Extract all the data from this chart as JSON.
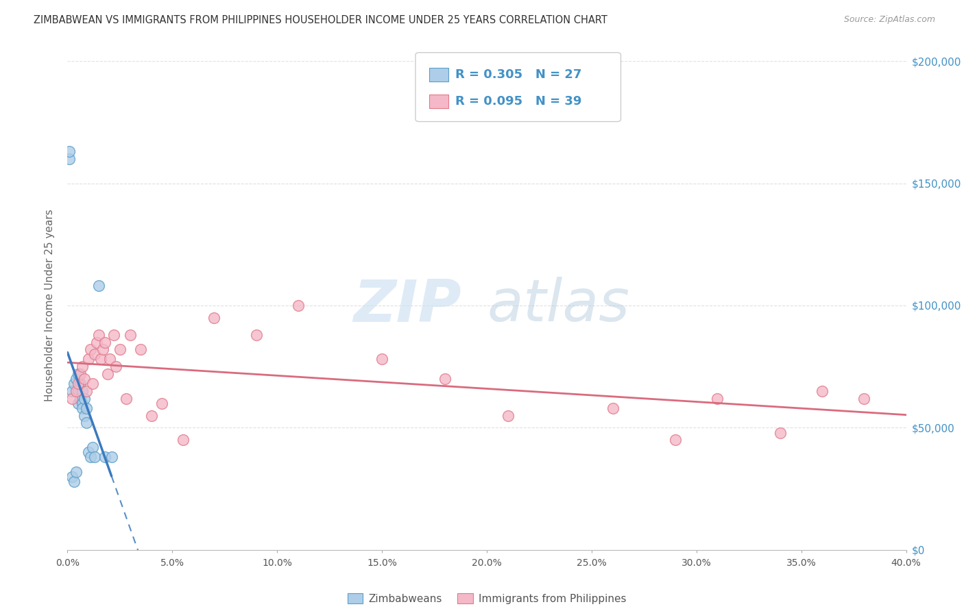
{
  "title": "ZIMBABWEAN VS IMMIGRANTS FROM PHILIPPINES HOUSEHOLDER INCOME UNDER 25 YEARS CORRELATION CHART",
  "source": "Source: ZipAtlas.com",
  "ylabel": "Householder Income Under 25 years",
  "legend_label_1": "Zimbabweans",
  "legend_label_2": "Immigrants from Philippines",
  "R1": 0.305,
  "N1": 27,
  "R2": 0.095,
  "N2": 39,
  "color_blue_fill": "#aecde8",
  "color_blue_edge": "#5b9ec9",
  "color_pink_fill": "#f4b8c8",
  "color_pink_edge": "#e07a8a",
  "color_trend_blue": "#3a7abf",
  "color_trend_pink": "#d96b7e",
  "color_ytick": "#4292c6",
  "xlim": [
    0.0,
    0.4
  ],
  "ylim": [
    0,
    200000
  ],
  "xticks": [
    0.0,
    0.05,
    0.1,
    0.15,
    0.2,
    0.25,
    0.3,
    0.35,
    0.4
  ],
  "yticks": [
    0,
    50000,
    100000,
    150000,
    200000
  ],
  "watermark_zip": "ZIP",
  "watermark_atlas": "atlas",
  "zimbabwe_x": [
    0.001,
    0.001,
    0.002,
    0.002,
    0.003,
    0.003,
    0.004,
    0.004,
    0.005,
    0.005,
    0.005,
    0.006,
    0.006,
    0.007,
    0.007,
    0.007,
    0.008,
    0.008,
    0.009,
    0.009,
    0.01,
    0.011,
    0.012,
    0.013,
    0.015,
    0.018,
    0.021
  ],
  "zimbabwe_y": [
    160000,
    163000,
    30000,
    65000,
    28000,
    68000,
    32000,
    70000,
    60000,
    72000,
    65000,
    68000,
    62000,
    65000,
    60000,
    58000,
    62000,
    55000,
    58000,
    52000,
    40000,
    38000,
    42000,
    38000,
    108000,
    38000,
    38000
  ],
  "philippines_x": [
    0.002,
    0.004,
    0.005,
    0.006,
    0.007,
    0.008,
    0.009,
    0.01,
    0.011,
    0.012,
    0.013,
    0.014,
    0.015,
    0.016,
    0.017,
    0.018,
    0.019,
    0.02,
    0.022,
    0.023,
    0.025,
    0.028,
    0.03,
    0.035,
    0.04,
    0.045,
    0.055,
    0.07,
    0.09,
    0.11,
    0.15,
    0.18,
    0.21,
    0.26,
    0.29,
    0.31,
    0.34,
    0.36,
    0.38
  ],
  "philippines_y": [
    62000,
    65000,
    68000,
    72000,
    75000,
    70000,
    65000,
    78000,
    82000,
    68000,
    80000,
    85000,
    88000,
    78000,
    82000,
    85000,
    72000,
    78000,
    88000,
    75000,
    82000,
    62000,
    88000,
    82000,
    55000,
    60000,
    45000,
    95000,
    88000,
    100000,
    78000,
    70000,
    55000,
    58000,
    45000,
    62000,
    48000,
    65000,
    62000
  ]
}
